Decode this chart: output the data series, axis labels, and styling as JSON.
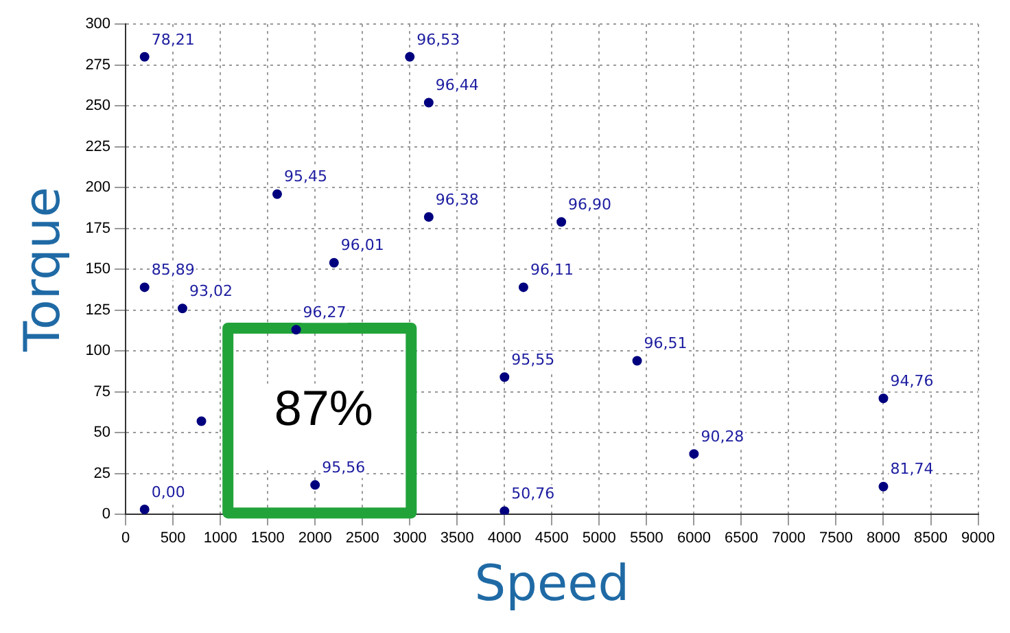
{
  "chart_data": {
    "type": "scatter",
    "xlabel": "Speed",
    "ylabel": "Torque",
    "x": [
      200,
      200,
      3000,
      3200,
      1600,
      3200,
      4600,
      2200,
      4200,
      200,
      600,
      1800,
      4000,
      5400,
      800,
      2000,
      4000,
      6000,
      8000,
      8000
    ],
    "values": [
      3,
      280,
      280,
      252,
      196,
      182,
      179,
      154,
      139,
      139,
      126,
      113,
      84,
      94,
      57,
      18,
      2,
      37,
      71,
      17
    ],
    "color": "#00007f",
    "marker": "circle",
    "xlim": [
      0,
      9000
    ],
    "xticks": [
      0,
      500,
      1000,
      1500,
      2000,
      2500,
      3000,
      3500,
      4000,
      4500,
      5000,
      5500,
      6000,
      6500,
      7000,
      7500,
      8000,
      8500,
      9000
    ],
    "ylim": [
      0,
      300
    ],
    "yticks": [
      0,
      25,
      50,
      75,
      100,
      125,
      150,
      175,
      200,
      225,
      250,
      275,
      300
    ],
    "grid": true,
    "annotations": [
      "87%",
      {
        "text": "0,00",
        "x": 200,
        "y": 3
      },
      {
        "text": "78,21",
        "x": 200,
        "y": 280
      },
      {
        "text": "96,53",
        "x": 3000,
        "y": 280
      },
      {
        "text": "96,44",
        "x": 3200,
        "y": 252
      },
      {
        "text": "95,45",
        "x": 1600,
        "y": 196
      },
      {
        "text": "96,38",
        "x": 3200,
        "y": 182
      },
      {
        "text": "96,90",
        "x": 4600,
        "y": 179
      },
      {
        "text": "96,01",
        "x": 2200,
        "y": 154
      },
      {
        "text": "96,11",
        "x": 4200,
        "y": 139
      },
      {
        "text": "85,89",
        "x": 200,
        "y": 139
      },
      {
        "text": "93,02",
        "x": 600,
        "y": 126
      },
      {
        "text": "96,27",
        "x": 1800,
        "y": 113
      },
      {
        "text": "95,55",
        "x": 4000,
        "y": 84
      },
      {
        "text": "96,51",
        "x": 5400,
        "y": 94
      },
      {
        "text": "95,56",
        "x": 2000,
        "y": 18
      },
      {
        "text": "50,76",
        "x": 4000,
        "y": 2
      },
      {
        "text": "90,28",
        "x": 6000,
        "y": 37
      },
      {
        "text": "94,76",
        "x": 8000,
        "y": 71
      },
      {
        "text": "81,74",
        "x": 8000,
        "y": 17
      }
    ]
  }
}
